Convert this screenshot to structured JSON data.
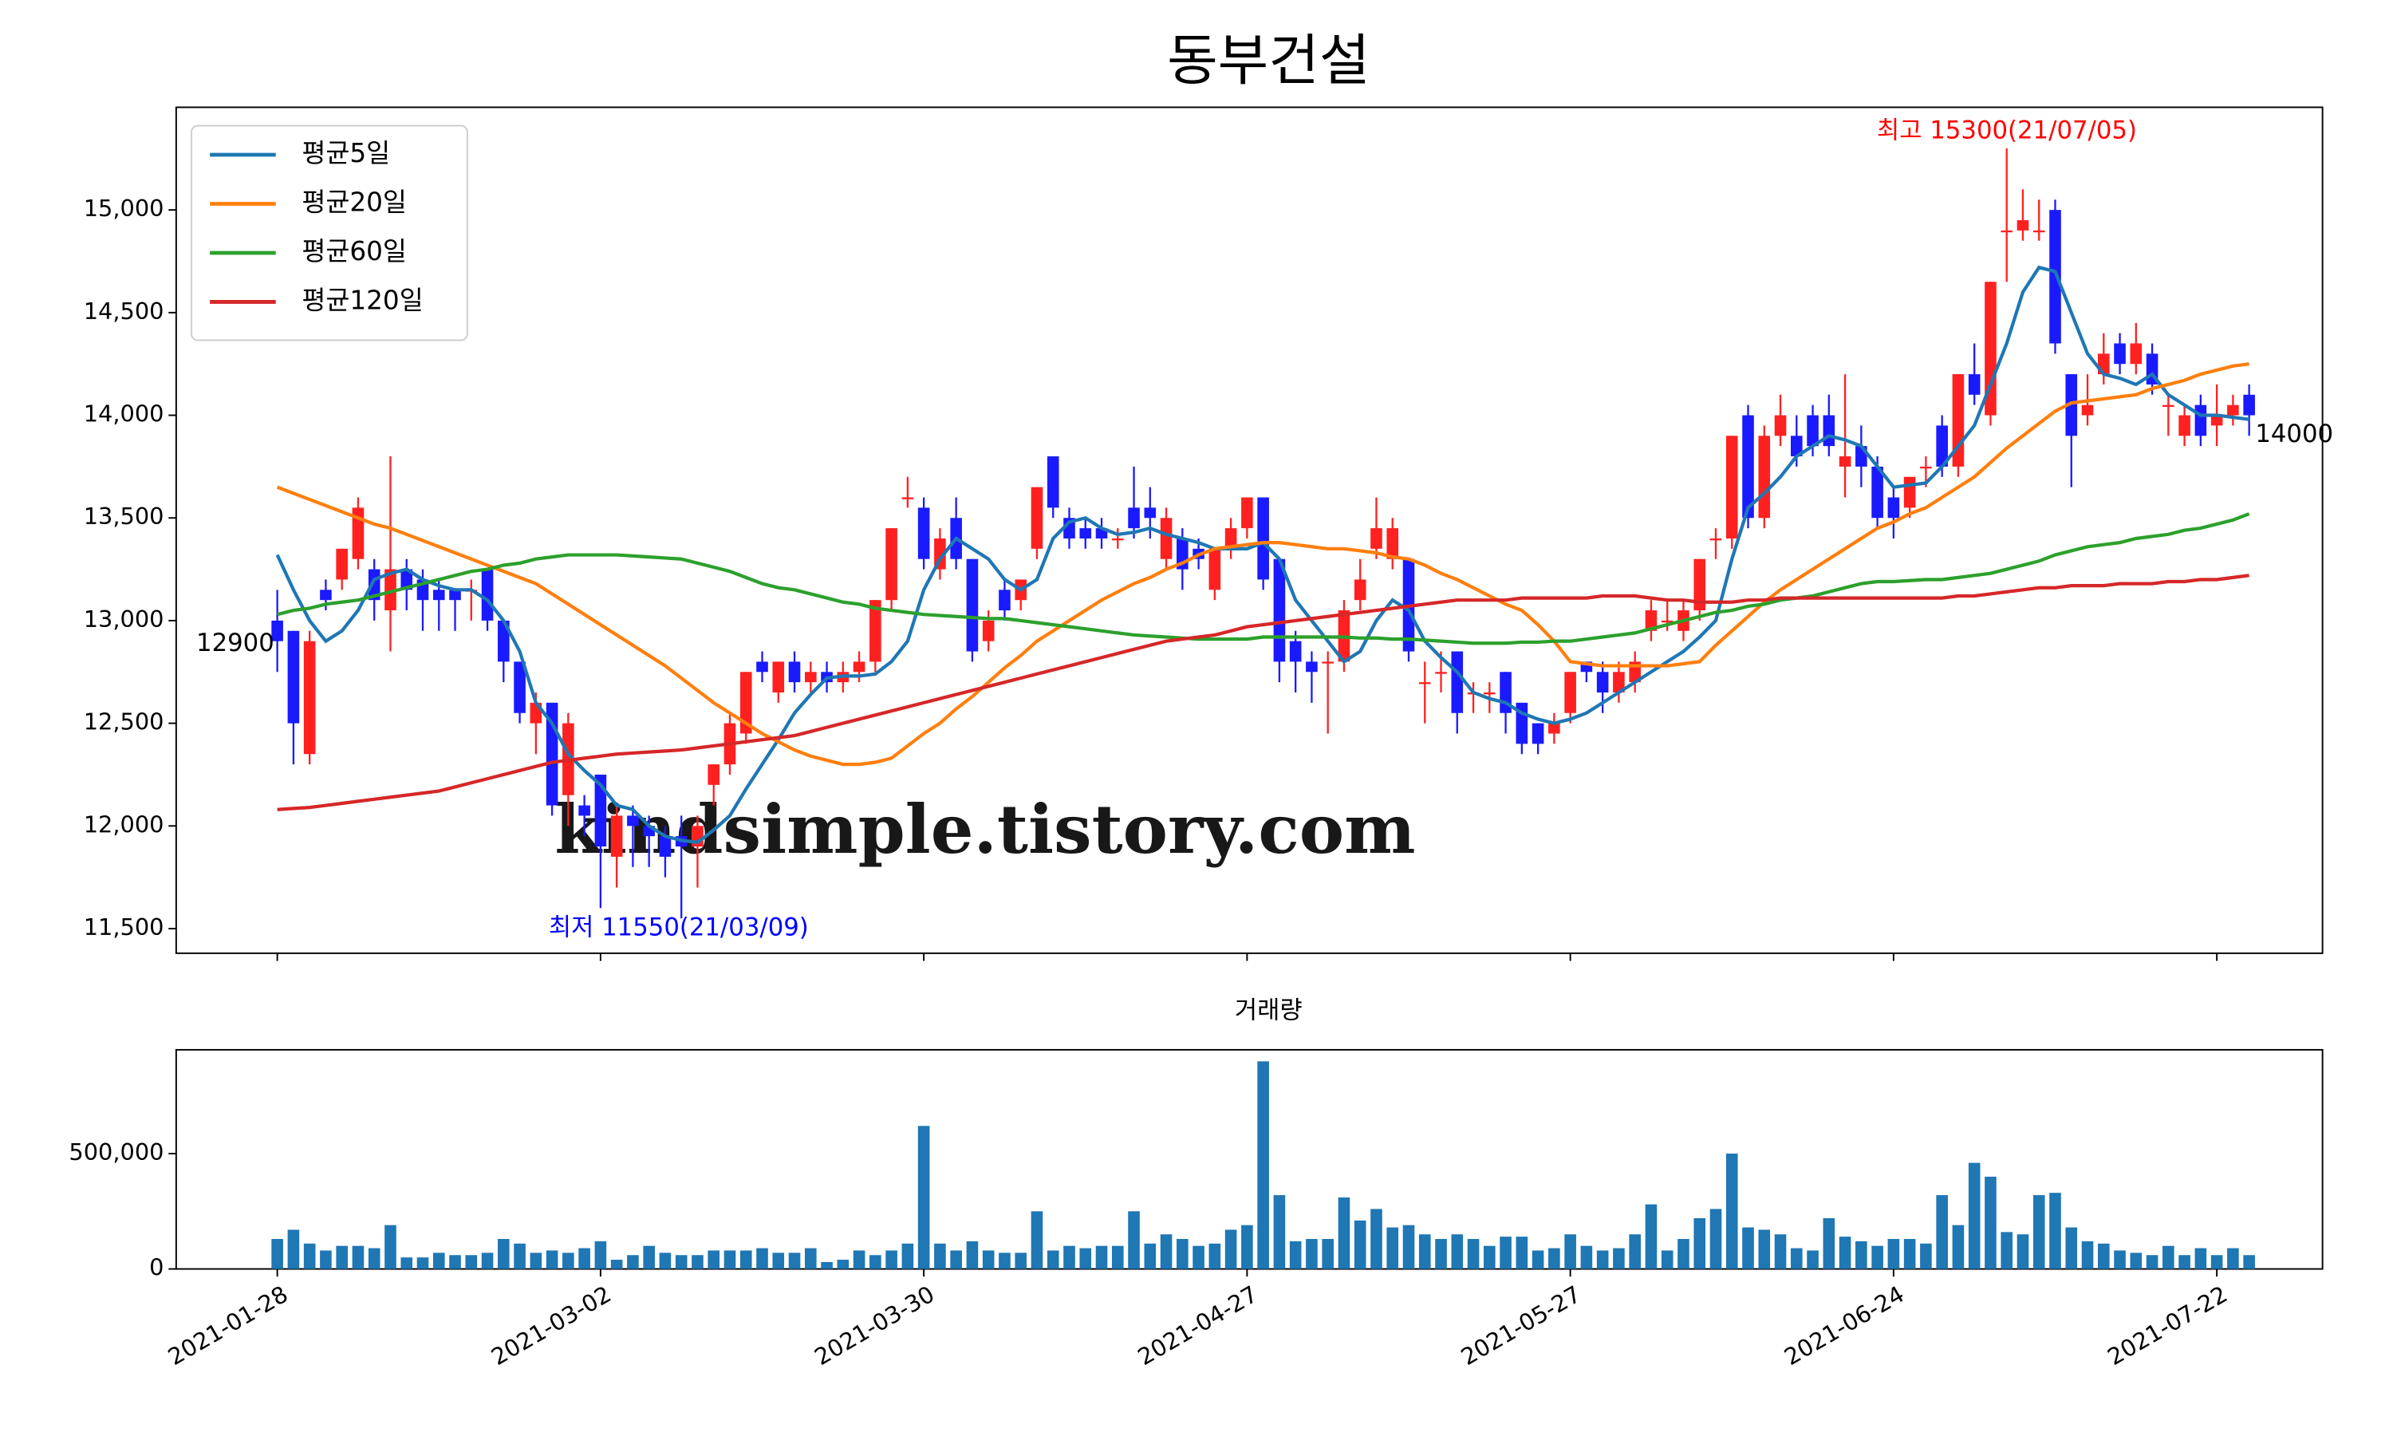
{
  "chart_data": {
    "type": "candlestick",
    "title": "동부건설",
    "volume_title": "거래량",
    "watermark": "kindsimple.tistory.com",
    "max_annotation": "최고 15300(21/07/05)",
    "min_annotation": "최저 11550(21/03/09)",
    "up_color": "#ff2020",
    "down_color": "#1a1aff",
    "categories": [
      "2021-01-28",
      null,
      null,
      null,
      null,
      null,
      null,
      null,
      null,
      null,
      null,
      null,
      null,
      null,
      null,
      null,
      null,
      null,
      null,
      null,
      "2021-03-02",
      null,
      null,
      null,
      null,
      null,
      null,
      null,
      null,
      null,
      null,
      null,
      null,
      null,
      null,
      null,
      null,
      null,
      null,
      null,
      "2021-03-30",
      null,
      null,
      null,
      null,
      null,
      null,
      null,
      null,
      null,
      null,
      null,
      null,
      null,
      null,
      null,
      null,
      null,
      null,
      null,
      "2021-04-27",
      null,
      null,
      null,
      null,
      null,
      null,
      null,
      null,
      null,
      null,
      null,
      null,
      null,
      null,
      null,
      null,
      null,
      null,
      null,
      "2021-05-27",
      null,
      null,
      null,
      null,
      null,
      null,
      null,
      null,
      null,
      null,
      null,
      null,
      null,
      null,
      null,
      null,
      null,
      null,
      null,
      "2021-06-24",
      null,
      null,
      null,
      null,
      null,
      null,
      null,
      null,
      null,
      null,
      null,
      null,
      null,
      null,
      null,
      null,
      null,
      null,
      null,
      "2021-07-22",
      null,
      null
    ],
    "open": [
      13000,
      12950,
      12350,
      13150,
      13200,
      13300,
      13250,
      13050,
      13250,
      13200,
      13150,
      13150,
      13150,
      13250,
      13000,
      12800,
      12500,
      12600,
      12150,
      12100,
      12250,
      11850,
      12050,
      12000,
      11950,
      11950,
      11900,
      12200,
      12300,
      12450,
      12800,
      12650,
      12800,
      12700,
      12750,
      12700,
      12750,
      12800,
      13100,
      13600,
      13550,
      13250,
      13500,
      13300,
      12900,
      13150,
      13100,
      13350,
      13800,
      13500,
      13450,
      13450,
      13400,
      13550,
      13550,
      13300,
      13400,
      13350,
      13150,
      13350,
      13450,
      13600,
      13300,
      12900,
      12800,
      12800,
      12800,
      13100,
      13350,
      13300,
      13300,
      12700,
      12750,
      12850,
      12650,
      12650,
      12750,
      12600,
      12500,
      12450,
      12550,
      12800,
      12750,
      12650,
      12700,
      12950,
      13000,
      12950,
      13050,
      13400,
      13400,
      14000,
      13500,
      13900,
      13900,
      14000,
      14000,
      13750,
      13850,
      13750,
      13600,
      13550,
      13750,
      13950,
      13750,
      14200,
      14000,
      14900,
      14900,
      14900,
      15000,
      14200,
      14000,
      14200,
      14350,
      14250,
      14300,
      14050,
      13900,
      14050,
      13950,
      14000,
      14100
    ],
    "high": [
      13150,
      12950,
      12950,
      13200,
      13350,
      13600,
      13300,
      13800,
      13300,
      13250,
      13200,
      13150,
      13200,
      13250,
      13000,
      12800,
      12650,
      12600,
      12550,
      12150,
      12250,
      12100,
      12100,
      12050,
      12000,
      12050,
      12050,
      12300,
      12550,
      12750,
      12850,
      12800,
      12850,
      12800,
      12800,
      12800,
      12850,
      13100,
      13450,
      13700,
      13600,
      13450,
      13600,
      13300,
      13050,
      13200,
      13200,
      13650,
      13800,
      13550,
      13500,
      13500,
      13450,
      13750,
      13650,
      13550,
      13450,
      13400,
      13350,
      13500,
      13600,
      13600,
      13300,
      12950,
      12850,
      12850,
      13100,
      13300,
      13600,
      13500,
      13300,
      12800,
      12850,
      12850,
      12700,
      12700,
      12750,
      12600,
      12500,
      12550,
      12750,
      12800,
      12800,
      12800,
      12850,
      13100,
      13100,
      13100,
      13300,
      13450,
      13900,
      14050,
      13950,
      14100,
      14000,
      14050,
      14100,
      14200,
      13950,
      13800,
      13650,
      13700,
      13800,
      14000,
      14200,
      14350,
      14650,
      15300,
      15100,
      15050,
      15050,
      14200,
      14200,
      14400,
      14400,
      14450,
      14350,
      14100,
      14050,
      14100,
      14150,
      14100,
      14150
    ],
    "low": [
      12750,
      12300,
      12300,
      13050,
      13150,
      13250,
      13000,
      12850,
      13050,
      12950,
      12950,
      12950,
      13000,
      12950,
      12700,
      12500,
      12350,
      12050,
      12000,
      11950,
      11600,
      11700,
      11800,
      11800,
      11750,
      11550,
      11700,
      12100,
      12250,
      12400,
      12700,
      12600,
      12650,
      12650,
      12650,
      12650,
      12700,
      12750,
      13050,
      13550,
      13250,
      13200,
      13250,
      12800,
      12850,
      13000,
      13050,
      13300,
      13500,
      13350,
      13350,
      13350,
      13350,
      13400,
      13400,
      13250,
      13150,
      13250,
      13100,
      13300,
      13400,
      13150,
      12700,
      12650,
      12600,
      12450,
      12750,
      13050,
      13300,
      13250,
      12800,
      12500,
      12650,
      12450,
      12550,
      12550,
      12450,
      12350,
      12350,
      12400,
      12500,
      12700,
      12550,
      12600,
      12650,
      12900,
      12950,
      12900,
      13000,
      13300,
      13350,
      13450,
      13450,
      13850,
      13750,
      13800,
      13800,
      13600,
      13650,
      13450,
      13400,
      13500,
      13650,
      13700,
      13700,
      14050,
      13950,
      14650,
      14850,
      14850,
      14300,
      13650,
      13950,
      14150,
      14200,
      14200,
      14100,
      13900,
      13850,
      13850,
      13850,
      13950,
      13900
    ],
    "close": [
      12900,
      12500,
      12900,
      13100,
      13350,
      13550,
      13100,
      13250,
      13150,
      13100,
      13100,
      13100,
      13150,
      13000,
      12800,
      12550,
      12600,
      12100,
      12500,
      12050,
      11900,
      12050,
      12000,
      11950,
      11850,
      11900,
      12000,
      12300,
      12500,
      12750,
      12750,
      12800,
      12700,
      12750,
      12700,
      12750,
      12800,
      13100,
      13450,
      13600,
      13300,
      13400,
      13300,
      12850,
      13000,
      13050,
      13200,
      13650,
      13550,
      13400,
      13400,
      13400,
      13400,
      13450,
      13500,
      13500,
      13250,
      13300,
      13350,
      13450,
      13600,
      13200,
      12800,
      12800,
      12750,
      12800,
      13050,
      13200,
      13450,
      13450,
      12850,
      12700,
      12750,
      12550,
      12650,
      12650,
      12550,
      12400,
      12400,
      12500,
      12750,
      12750,
      12650,
      12750,
      12800,
      13050,
      13000,
      13050,
      13300,
      13400,
      13900,
      13500,
      13900,
      14000,
      13800,
      13850,
      13850,
      13800,
      13750,
      13500,
      13500,
      13700,
      13750,
      13750,
      14200,
      14100,
      14650,
      14900,
      14950,
      14900,
      14350,
      13900,
      14050,
      14300,
      14250,
      14350,
      14150,
      14050,
      14000,
      13900,
      14000,
      14050,
      14000
    ],
    "series": [
      {
        "name": "평균5일",
        "color": "#1f77b4",
        "values": [
          13320,
          13150,
          13000,
          12900,
          12950,
          13050,
          13200,
          13230,
          13250,
          13200,
          13170,
          13150,
          13150,
          13100,
          13000,
          12850,
          12600,
          12500,
          12350,
          12270,
          12200,
          12100,
          12080,
          12000,
          11950,
          11930,
          11920,
          11980,
          12050,
          12180,
          12300,
          12420,
          12550,
          12640,
          12720,
          12730,
          12730,
          12740,
          12800,
          12900,
          13150,
          13300,
          13400,
          13350,
          13300,
          13200,
          13150,
          13200,
          13400,
          13480,
          13500,
          13450,
          13420,
          13430,
          13450,
          13420,
          13400,
          13380,
          13350,
          13350,
          13350,
          13380,
          13300,
          13100,
          13000,
          12900,
          12800,
          12850,
          13000,
          13100,
          13050,
          12900,
          12820,
          12750,
          12650,
          12620,
          12600,
          12550,
          12520,
          12500,
          12520,
          12550,
          12600,
          12650,
          12700,
          12750,
          12800,
          12850,
          12920,
          13000,
          13300,
          13550,
          13620,
          13700,
          13800,
          13850,
          13900,
          13880,
          13850,
          13750,
          13650,
          13660,
          13670,
          13750,
          13850,
          13950,
          14150,
          14350,
          14600,
          14720,
          14700,
          14500,
          14300,
          14200,
          14180,
          14150,
          14200,
          14100,
          14050,
          14000,
          14000,
          13990,
          13980
        ]
      },
      {
        "name": "평균20일",
        "color": "#ff7f0e",
        "values": [
          13650,
          13620,
          13590,
          13560,
          13530,
          13500,
          13470,
          13450,
          13420,
          13390,
          13360,
          13330,
          13300,
          13270,
          13240,
          13210,
          13180,
          13130,
          13080,
          13030,
          12980,
          12930,
          12880,
          12830,
          12780,
          12720,
          12660,
          12600,
          12550,
          12500,
          12450,
          12410,
          12370,
          12340,
          12320,
          12300,
          12300,
          12310,
          12330,
          12390,
          12450,
          12500,
          12570,
          12630,
          12700,
          12770,
          12830,
          12900,
          12950,
          13000,
          13050,
          13100,
          13140,
          13180,
          13210,
          13250,
          13280,
          13320,
          13350,
          13360,
          13370,
          13380,
          13380,
          13370,
          13360,
          13350,
          13350,
          13340,
          13330,
          13310,
          13300,
          13270,
          13230,
          13200,
          13160,
          13120,
          13080,
          13050,
          12980,
          12900,
          12800,
          12790,
          12780,
          12780,
          12780,
          12780,
          12780,
          12790,
          12800,
          12880,
          12950,
          13020,
          13090,
          13150,
          13200,
          13250,
          13300,
          13350,
          13400,
          13450,
          13480,
          13520,
          13550,
          13600,
          13650,
          13700,
          13770,
          13840,
          13900,
          13960,
          14020,
          14060,
          14070,
          14080,
          14090,
          14100,
          14130,
          14150,
          14170,
          14200,
          14220,
          14240,
          14250
        ]
      },
      {
        "name": "평균60일",
        "color": "#2ca02c",
        "values": [
          13030,
          13050,
          13060,
          13080,
          13090,
          13100,
          13120,
          13140,
          13160,
          13180,
          13200,
          13220,
          13240,
          13250,
          13270,
          13280,
          13300,
          13310,
          13320,
          13320,
          13320,
          13320,
          13315,
          13310,
          13305,
          13300,
          13280,
          13260,
          13240,
          13210,
          13180,
          13160,
          13150,
          13130,
          13110,
          13090,
          13080,
          13060,
          13050,
          13040,
          13030,
          13025,
          13020,
          13015,
          13010,
          13010,
          13000,
          12990,
          12980,
          12970,
          12960,
          12950,
          12940,
          12930,
          12925,
          12920,
          12915,
          12910,
          12910,
          12910,
          12910,
          12920,
          12920,
          12920,
          12920,
          12920,
          12920,
          12915,
          12915,
          12910,
          12910,
          12905,
          12900,
          12895,
          12890,
          12890,
          12890,
          12895,
          12895,
          12900,
          12900,
          12910,
          12920,
          12930,
          12940,
          12960,
          12980,
          13000,
          13020,
          13040,
          13050,
          13070,
          13080,
          13100,
          13110,
          13120,
          13140,
          13160,
          13180,
          13190,
          13190,
          13195,
          13200,
          13200,
          13210,
          13220,
          13230,
          13250,
          13270,
          13290,
          13320,
          13340,
          13360,
          13370,
          13380,
          13400,
          13410,
          13420,
          13440,
          13450,
          13470,
          13490,
          13520
        ]
      },
      {
        "name": "평균120일",
        "color": "#d62728",
        "values": [
          12080,
          12085,
          12090,
          12100,
          12110,
          12120,
          12130,
          12140,
          12150,
          12160,
          12170,
          12190,
          12210,
          12230,
          12250,
          12270,
          12290,
          12310,
          12320,
          12330,
          12340,
          12350,
          12355,
          12360,
          12365,
          12370,
          12380,
          12390,
          12400,
          12410,
          12420,
          12430,
          12440,
          12460,
          12480,
          12500,
          12520,
          12540,
          12560,
          12580,
          12600,
          12620,
          12640,
          12660,
          12680,
          12700,
          12720,
          12740,
          12760,
          12780,
          12800,
          12820,
          12840,
          12860,
          12880,
          12900,
          12910,
          12920,
          12930,
          12950,
          12970,
          12980,
          12990,
          13000,
          13010,
          13020,
          13030,
          13040,
          13050,
          13060,
          13070,
          13080,
          13090,
          13100,
          13100,
          13100,
          13100,
          13110,
          13110,
          13110,
          13110,
          13110,
          13120,
          13120,
          13120,
          13110,
          13100,
          13100,
          13090,
          13090,
          13090,
          13100,
          13100,
          13110,
          13110,
          13110,
          13110,
          13110,
          13110,
          13110,
          13110,
          13110,
          13110,
          13110,
          13120,
          13120,
          13130,
          13140,
          13150,
          13160,
          13160,
          13170,
          13170,
          13170,
          13180,
          13180,
          13180,
          13190,
          13190,
          13200,
          13200,
          13210,
          13220
        ]
      }
    ],
    "volume": {
      "color": "#1f77b4",
      "values": [
        130000,
        170000,
        110000,
        80000,
        100000,
        100000,
        90000,
        190000,
        50000,
        50000,
        70000,
        60000,
        60000,
        70000,
        130000,
        110000,
        70000,
        80000,
        70000,
        90000,
        120000,
        40000,
        60000,
        100000,
        70000,
        60000,
        60000,
        80000,
        80000,
        80000,
        90000,
        70000,
        70000,
        90000,
        30000,
        40000,
        80000,
        60000,
        80000,
        110000,
        620000,
        110000,
        80000,
        120000,
        80000,
        70000,
        70000,
        250000,
        80000,
        100000,
        90000,
        100000,
        100000,
        250000,
        110000,
        150000,
        130000,
        100000,
        110000,
        170000,
        190000,
        900000,
        320000,
        120000,
        130000,
        130000,
        310000,
        210000,
        260000,
        180000,
        190000,
        150000,
        130000,
        150000,
        130000,
        100000,
        140000,
        140000,
        80000,
        90000,
        150000,
        100000,
        80000,
        90000,
        150000,
        280000,
        80000,
        130000,
        220000,
        260000,
        500000,
        180000,
        170000,
        150000,
        90000,
        80000,
        220000,
        140000,
        120000,
        100000,
        130000,
        130000,
        110000,
        320000,
        190000,
        460000,
        400000,
        160000,
        150000,
        320000,
        330000,
        180000,
        120000,
        110000,
        80000,
        70000,
        60000,
        100000,
        60000,
        90000,
        60000,
        90000,
        60000
      ],
      "ylim": [
        0,
        950000
      ],
      "yticks": [
        0,
        {
          "value": 500000,
          "label": "500,000"
        }
      ]
    },
    "ylim": [
      11380,
      15500
    ],
    "yticks": [
      {
        "value": 11500,
        "label": "11,500"
      },
      {
        "value": 12000,
        "label": "12,000"
      },
      {
        "value": 12500,
        "label": "12,500"
      },
      {
        "value": 13000,
        "label": "13,000"
      },
      {
        "value": 13500,
        "label": "13,500"
      },
      {
        "value": 14000,
        "label": "14,000"
      },
      {
        "value": 14500,
        "label": "14,500"
      },
      {
        "value": 15000,
        "label": "15,000"
      }
    ],
    "legend": "upper left",
    "grid": false
  }
}
